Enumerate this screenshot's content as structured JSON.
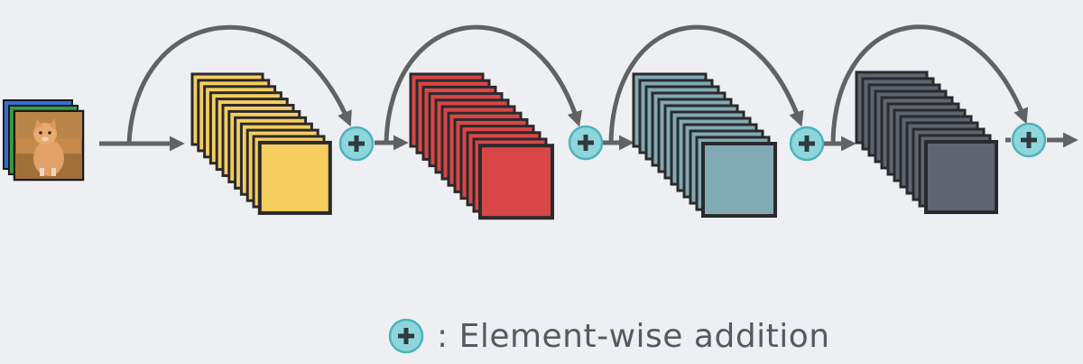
{
  "colors": {
    "background": "#eeeff3",
    "arrow": "#616264",
    "outline": "#2a2a2d",
    "plus_fill": "#8fd6dc",
    "plus_stroke": "#4cb3bd",
    "plus_sign": "#2f3a40",
    "block_1": "#f6cd5f",
    "block_2": "#d84645",
    "block_3": "#81aab3",
    "block_4": "#5e6570"
  },
  "input_image": {
    "icon": "kitten-photo-icon"
  },
  "blocks": [
    {
      "color_key": "block_1"
    },
    {
      "color_key": "block_2"
    },
    {
      "color_key": "block_3"
    },
    {
      "color_key": "block_4"
    }
  ],
  "operation_icon": "plus-circle-icon",
  "legend": {
    "symbol": "+",
    "label": ": Element-wise addition"
  }
}
